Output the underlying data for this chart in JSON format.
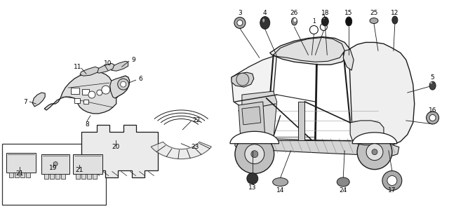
{
  "bg_color": "#ffffff",
  "fig_width": 6.4,
  "fig_height": 2.98,
  "dpi": 100,
  "line_color": "#1a1a1a",
  "text_color": "#000000",
  "font_size": 6.5,
  "font_size_small": 5.5
}
